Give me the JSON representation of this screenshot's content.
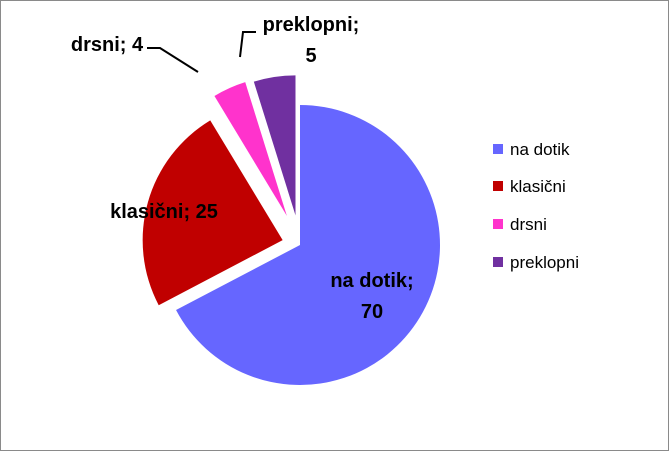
{
  "chart_data": {
    "type": "pie",
    "title": "",
    "exploded": true,
    "categories": [
      "na dotik",
      "klasični",
      "drsni",
      "preklopni"
    ],
    "values": [
      70,
      25,
      4,
      5
    ],
    "colors": [
      "#6666ff",
      "#c00000",
      "#ff33cc",
      "#7030a0"
    ],
    "data_labels": [
      {
        "category": "na dotik",
        "value": "70",
        "text_line1": "na dotik;",
        "text_line2": "70"
      },
      {
        "category": "klasični",
        "value": "25",
        "text_line1": "klasični; 25",
        "text_line2": ""
      },
      {
        "category": "drsni",
        "value": "4",
        "text_line1": "drsni; 4",
        "text_line2": ""
      },
      {
        "category": "preklopni",
        "value": "5",
        "text_line1": "preklopni;",
        "text_line2": "5"
      }
    ],
    "legend": {
      "placement": "right",
      "entries": [
        "na dotik",
        "klasični",
        "drsni",
        "preklopni"
      ]
    }
  }
}
